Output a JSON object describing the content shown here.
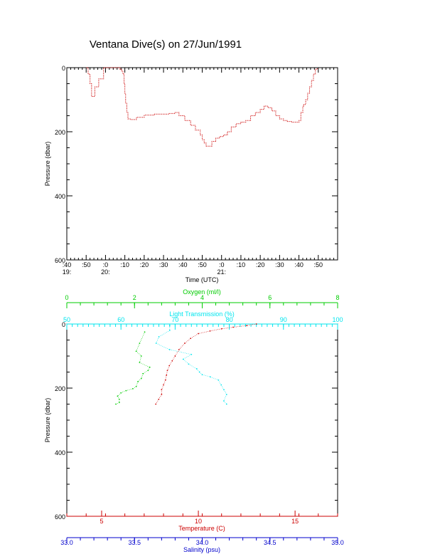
{
  "title": "Ventana Dive(s) on 27/Jun/1991",
  "colors": {
    "frame": "#000000",
    "temperature": "#cc0000",
    "salinity": "#0000cc",
    "oxygen": "#00cc00",
    "light": "#00e5ee",
    "trace": "#cc0000"
  },
  "chart_data": [
    {
      "type": "line",
      "name": "dive-profile",
      "xlabel": "Time (UTC)",
      "ylabel": "Pressure (dbar)",
      "ylim": [
        0,
        600
      ],
      "y_inverted": true,
      "yticks": [
        0,
        200,
        400,
        600
      ],
      "xlim_minutes": [
        0,
        140
      ],
      "xticks": [
        {
          "m": 0,
          "label": ":40",
          "hour": "19:"
        },
        {
          "m": 10,
          "label": ":50",
          "hour": ""
        },
        {
          "m": 20,
          "label": ":0",
          "hour": "20:"
        },
        {
          "m": 30,
          "label": ":10",
          "hour": ""
        },
        {
          "m": 40,
          "label": ":20",
          "hour": ""
        },
        {
          "m": 50,
          "label": ":30",
          "hour": ""
        },
        {
          "m": 60,
          "label": ":40",
          "hour": ""
        },
        {
          "m": 70,
          "label": ":50",
          "hour": ""
        },
        {
          "m": 80,
          "label": ":0",
          "hour": "21:"
        },
        {
          "m": 90,
          "label": ":10",
          "hour": ""
        },
        {
          "m": 100,
          "label": ":20",
          "hour": ""
        },
        {
          "m": 110,
          "label": ":30",
          "hour": ""
        },
        {
          "m": 120,
          "label": ":40",
          "hour": ""
        },
        {
          "m": 130,
          "label": ":50",
          "hour": ""
        }
      ],
      "series": [
        {
          "time_minutes": [
            10.2,
            11.0,
            12.0,
            12.8,
            13.5,
            14.5,
            16.5,
            19.0,
            22.0,
            25.5,
            26.8,
            27.5,
            28.3,
            29.0,
            29.6,
            30.0,
            30.4,
            31.0,
            31.6,
            33.0,
            36.0,
            40.0,
            45.0,
            50.0,
            53.0,
            56.0,
            58.0,
            61.0,
            64.0,
            66.5,
            69.0,
            70.0,
            71.0,
            72.0,
            73.5,
            75.0,
            77.0,
            79.0,
            81.0,
            83.0,
            85.0,
            87.5,
            90.0,
            92.5,
            95.0,
            97.5,
            100.0,
            102.0,
            104.0,
            106.0,
            108.0,
            110.0,
            112.0,
            114.0,
            116.0,
            118.0,
            120.0,
            121.0,
            122.0,
            122.5,
            123.5,
            124.5,
            125.5,
            126.5,
            127.5,
            128.5,
            129.5
          ],
          "pressure": [
            0,
            20,
            50,
            90,
            90,
            60,
            35,
            0,
            0,
            0,
            0,
            5,
            10,
            20,
            50,
            80,
            110,
            140,
            160,
            162,
            155,
            148,
            145,
            145,
            143,
            140,
            150,
            165,
            180,
            195,
            210,
            225,
            235,
            245,
            245,
            230,
            220,
            215,
            210,
            200,
            185,
            175,
            170,
            165,
            150,
            140,
            130,
            120,
            125,
            135,
            150,
            160,
            165,
            168,
            170,
            170,
            165,
            140,
            120,
            115,
            100,
            80,
            60,
            40,
            20,
            5,
            0
          ]
        }
      ]
    },
    {
      "type": "scatter",
      "name": "property-profiles",
      "ylabel": "Pressure (dbar)",
      "ylim": [
        0,
        600
      ],
      "y_inverted": true,
      "yticks": [
        0,
        200,
        400,
        600
      ],
      "axes": {
        "oxygen": {
          "label": "Oxygen (ml/l)",
          "range": [
            0,
            8
          ],
          "ticks": [
            0,
            2,
            4,
            6,
            8
          ]
        },
        "light": {
          "label": "Light Transmission (%)",
          "range": [
            50,
            100
          ],
          "ticks": [
            50,
            60,
            70,
            80,
            90,
            100
          ]
        },
        "temperature": {
          "label": "Temperature (C)",
          "range": [
            3.2,
            17.2
          ],
          "ticks": [
            5,
            10,
            15
          ]
        },
        "salinity": {
          "label": "Salinity (psu)",
          "range": [
            33.0,
            35.0
          ],
          "ticks": [
            "33.0",
            "33.5",
            "34.0",
            "34.5",
            "35.0"
          ]
        }
      },
      "series": [
        {
          "variable": "oxygen",
          "axis": "oxygen",
          "points": [
            [
              2.3,
              25
            ],
            [
              2.15,
              60
            ],
            [
              2.05,
              85
            ],
            [
              2.2,
              100
            ],
            [
              2.15,
              120
            ],
            [
              2.45,
              135
            ],
            [
              2.4,
              145
            ],
            [
              2.25,
              155
            ],
            [
              2.2,
              170
            ],
            [
              2.1,
              180
            ],
            [
              2.05,
              195
            ],
            [
              1.95,
              202
            ],
            [
              1.75,
              208
            ],
            [
              1.6,
              215
            ],
            [
              1.5,
              225
            ],
            [
              1.55,
              235
            ],
            [
              1.55,
              245
            ],
            [
              1.45,
              250
            ]
          ]
        },
        {
          "variable": "light",
          "axis": "light",
          "points": [
            [
              69,
              5
            ],
            [
              69,
              20
            ],
            [
              67,
              40
            ],
            [
              66.5,
              60
            ],
            [
              69,
              80
            ],
            [
              73,
              95
            ],
            [
              71.5,
              110
            ],
            [
              72.5,
              125
            ],
            [
              74,
              140
            ],
            [
              74.5,
              150
            ],
            [
              75,
              158
            ],
            [
              76.5,
              165
            ],
            [
              78,
              175
            ],
            [
              78.5,
              190
            ],
            [
              79,
              205
            ],
            [
              79.5,
              220
            ],
            [
              79,
              240
            ],
            [
              79.5,
              250
            ]
          ]
        },
        {
          "variable": "temperature",
          "axis": "temperature",
          "points": [
            [
              13.0,
              0
            ],
            [
              12.5,
              5
            ],
            [
              11.8,
              10
            ],
            [
              11.2,
              15
            ],
            [
              10.6,
              22
            ],
            [
              10.0,
              30
            ],
            [
              9.6,
              45
            ],
            [
              9.3,
              60
            ],
            [
              9.0,
              80
            ],
            [
              8.8,
              100
            ],
            [
              8.65,
              115
            ],
            [
              8.5,
              130
            ],
            [
              8.4,
              145
            ],
            [
              8.35,
              160
            ],
            [
              8.3,
              175
            ],
            [
              8.2,
              190
            ],
            [
              8.1,
              205
            ],
            [
              8.1,
              220
            ],
            [
              7.95,
              235
            ],
            [
              7.8,
              250
            ]
          ]
        }
      ]
    }
  ]
}
